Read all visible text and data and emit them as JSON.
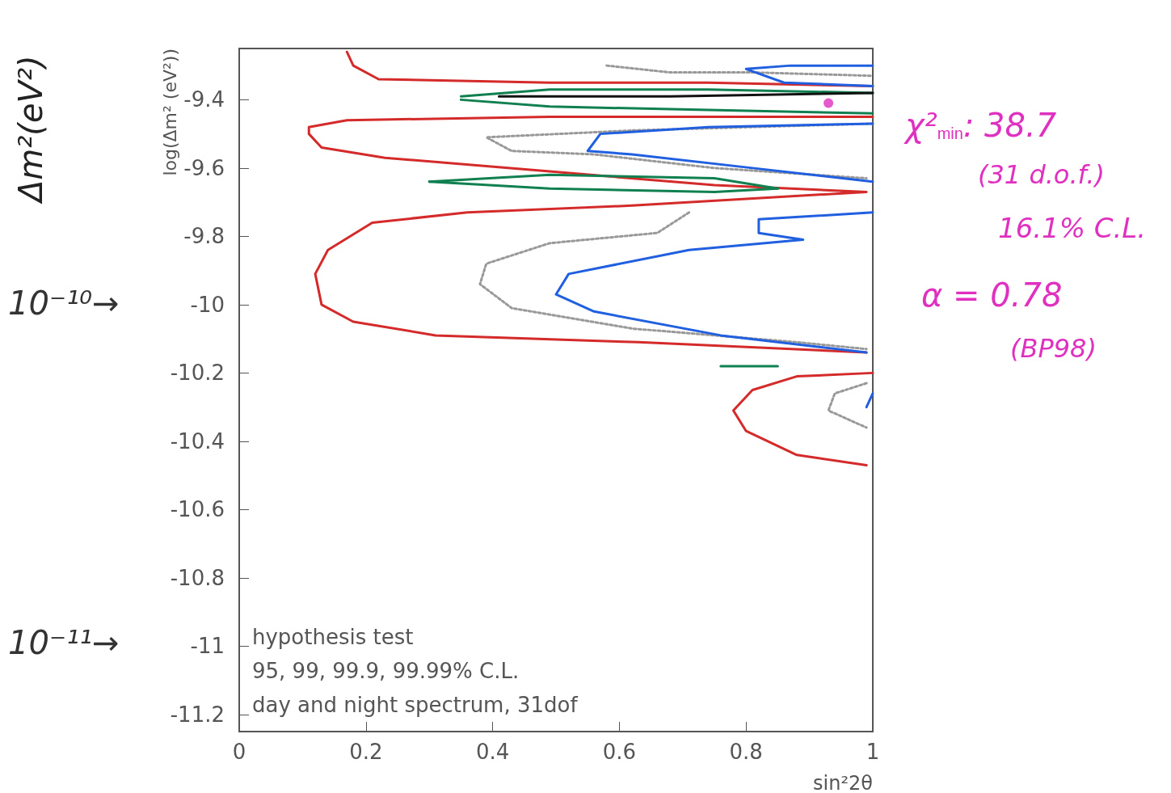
{
  "chart_data": {
    "type": "line",
    "xlabel": "sin²2θ",
    "ylabel": "log(Δm² (eV²))",
    "xlim": [
      0,
      1
    ],
    "ylim": [
      -11.25,
      -9.25
    ],
    "xticks": [
      0,
      0.2,
      0.4,
      0.6,
      0.8,
      1
    ],
    "yticks": [
      -11.2,
      -11,
      -10.8,
      -10.6,
      -10.4,
      -10.2,
      -10,
      -9.8,
      -9.6,
      -9.4
    ],
    "grid": false,
    "marker": "none",
    "line_style": "solid",
    "series": [
      {
        "color": "#d42a2a",
        "x": [
          0.17,
          0.18,
          0.22,
          0.49,
          0.74,
          1.0
        ],
        "values": [
          -9.26,
          -9.3,
          -9.34,
          -9.35,
          -9.35,
          -9.36
        ]
      },
      {
        "color": "#d42a2a",
        "x": [
          1.0,
          0.49,
          0.17,
          0.11,
          0.11,
          0.13,
          0.23,
          0.49,
          0.75,
          0.99,
          0.62,
          0.36,
          0.21,
          0.14,
          0.12,
          0.13,
          0.18,
          0.31,
          0.63,
          0.99
        ],
        "values": [
          -9.45,
          -9.45,
          -9.46,
          -9.48,
          -9.5,
          -9.54,
          -9.57,
          -9.61,
          -9.65,
          -9.67,
          -9.71,
          -9.73,
          -9.76,
          -9.84,
          -9.91,
          -10.0,
          -10.05,
          -10.09,
          -10.11,
          -10.14
        ]
      },
      {
        "color": "#d42a2a",
        "x": [
          1.0,
          0.88,
          0.81,
          0.78,
          0.8,
          0.88,
          0.99
        ],
        "values": [
          -10.2,
          -10.21,
          -10.25,
          -10.31,
          -10.37,
          -10.44,
          -10.47
        ]
      },
      {
        "color": "#999999",
        "line_style": "dotted",
        "x": [
          0.58,
          0.68,
          0.81,
          1.0
        ],
        "values": [
          -9.3,
          -9.32,
          -9.32,
          -9.33
        ]
      },
      {
        "color": "#999999",
        "line_style": "dotted",
        "x": [
          1.0,
          0.62,
          0.39,
          0.43,
          0.56,
          0.75,
          0.99
        ],
        "values": [
          -9.47,
          -9.49,
          -9.51,
          -9.55,
          -9.56,
          -9.6,
          -9.63
        ]
      },
      {
        "color": "#999999",
        "line_style": "dotted",
        "x": [
          0.71,
          0.66,
          0.49,
          0.39,
          0.38,
          0.43,
          0.62,
          0.88,
          0.99
        ],
        "values": [
          -9.73,
          -9.79,
          -9.82,
          -9.88,
          -9.94,
          -10.01,
          -10.07,
          -10.11,
          -10.13
        ]
      },
      {
        "color": "#999999",
        "line_style": "dotted",
        "x": [
          0.99,
          0.94,
          0.93,
          0.99
        ],
        "values": [
          -10.23,
          -10.26,
          -10.31,
          -10.36
        ]
      },
      {
        "color": "#2060e0",
        "x": [
          1.0,
          0.87,
          0.8,
          0.86,
          1.0
        ],
        "values": [
          -9.3,
          -9.3,
          -9.31,
          -9.35,
          -9.36
        ]
      },
      {
        "color": "#2060e0",
        "x": [
          1.0,
          0.74,
          0.57,
          0.55,
          0.62,
          0.81,
          1.0
        ],
        "values": [
          -9.47,
          -9.48,
          -9.5,
          -9.55,
          -9.56,
          -9.6,
          -9.64
        ]
      },
      {
        "color": "#2060e0",
        "x": [
          1.0,
          0.82,
          0.82,
          0.89,
          0.71,
          0.52,
          0.5,
          0.56,
          0.76,
          0.99
        ],
        "values": [
          -9.73,
          -9.75,
          -9.79,
          -9.81,
          -9.84,
          -9.91,
          -9.97,
          -10.02,
          -10.09,
          -10.14
        ]
      },
      {
        "color": "#2060e0",
        "x": [
          1.0,
          0.99
        ],
        "values": [
          -10.26,
          -10.3
        ]
      },
      {
        "color": "#108050",
        "x": [
          0.35,
          0.49,
          0.74,
          1.0
        ],
        "values": [
          -9.39,
          -9.37,
          -9.37,
          -9.38
        ]
      },
      {
        "color": "#108050",
        "x": [
          0.35,
          0.49,
          0.74,
          1.0
        ],
        "values": [
          -9.4,
          -9.42,
          -9.43,
          -9.44
        ]
      },
      {
        "color": "#108050",
        "x": [
          0.3,
          0.49,
          0.75,
          0.85
        ],
        "values": [
          -9.64,
          -9.62,
          -9.63,
          -9.66
        ]
      },
      {
        "color": "#108050",
        "x": [
          0.3,
          0.49,
          0.75,
          0.85
        ],
        "values": [
          -9.64,
          -9.66,
          -9.67,
          -9.66
        ]
      },
      {
        "color": "#108050",
        "x": [
          0.76,
          0.85
        ],
        "values": [
          -10.18,
          -10.18
        ]
      },
      {
        "color": "#111111",
        "x": [
          0.41,
          0.68,
          1.0
        ],
        "values": [
          -9.39,
          -9.39,
          -9.38
        ]
      },
      {
        "type": "scatter",
        "marker": "circle",
        "color": "#e030c0",
        "x": [
          0.93
        ],
        "values": [
          -9.41
        ]
      }
    ],
    "annotations": [
      "Δm²(eV²)",
      "10⁻¹⁰→",
      "10⁻¹¹→",
      "χ²$_{min}$: 38.7",
      "(31 d.o.f.)",
      "16.1% C.L.",
      "α = 0.78",
      "(BP98)",
      "hypothesis test",
      "95, 99, 99.9, 99.99% C.L.",
      "day and night spectrum, 31dof"
    ]
  }
}
